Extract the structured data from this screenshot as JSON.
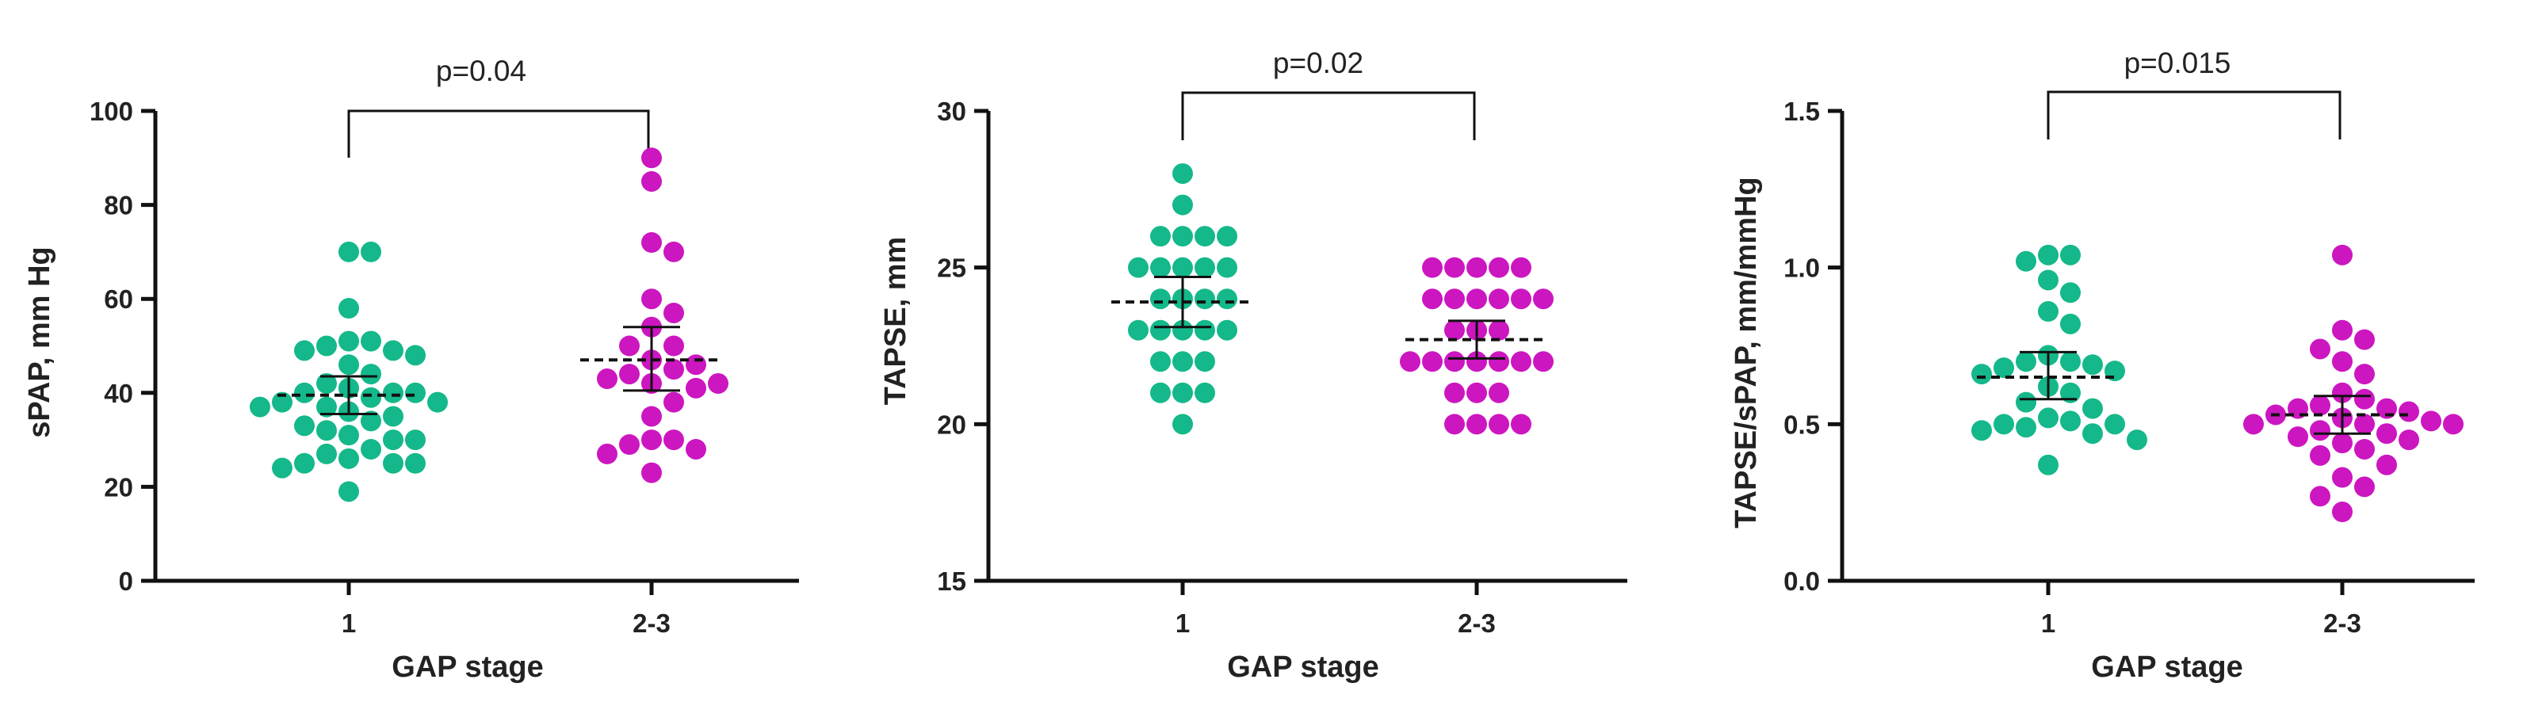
{
  "colors": {
    "group1": "#14b88a",
    "group2": "#cc16c0",
    "axis": "#111111",
    "text": "#222222"
  },
  "chart_data": [
    {
      "type": "scatter",
      "ylabel": "sPAP, mm Hg",
      "xlabel": "GAP stage",
      "categories": [
        "1",
        "2-3"
      ],
      "ylim": [
        0,
        100
      ],
      "yticks": [
        0,
        20,
        40,
        60,
        80,
        100
      ],
      "ytick_labels": [
        "0",
        "20",
        "40",
        "60",
        "80",
        "100"
      ],
      "annotation": "p=0.04",
      "series": [
        {
          "category": "1",
          "mean": 39.5,
          "ci": [
            35.5,
            43.5
          ],
          "values": [
            70,
            70,
            58,
            51,
            51,
            50,
            49,
            49,
            48,
            46,
            44,
            42,
            41,
            40,
            40,
            40,
            39,
            38,
            38,
            37,
            37,
            36,
            35,
            34,
            33,
            32,
            31,
            30,
            30,
            28,
            27,
            26,
            25,
            25,
            25,
            24,
            19
          ]
        },
        {
          "category": "2-3",
          "mean": 47,
          "ci": [
            40.5,
            54
          ],
          "values": [
            90,
            85,
            72,
            70,
            60,
            57,
            54,
            50,
            50,
            47,
            46,
            45,
            44,
            43,
            42,
            42,
            41,
            38,
            35,
            30,
            30,
            29,
            28,
            27,
            23
          ]
        }
      ]
    },
    {
      "type": "scatter",
      "ylabel": "TAPSE, mm",
      "xlabel": "GAP stage",
      "categories": [
        "1",
        "2-3"
      ],
      "ylim": [
        15,
        30
      ],
      "yticks": [
        15,
        20,
        25,
        30
      ],
      "ytick_labels": [
        "15",
        "20",
        "25",
        "30"
      ],
      "annotation": "p=0.02",
      "series": [
        {
          "category": "1",
          "mean": 23.9,
          "ci": [
            23.1,
            24.7
          ],
          "values": [
            28,
            27,
            26,
            26,
            26,
            26,
            25,
            25,
            25,
            25,
            25,
            24,
            24,
            24,
            24,
            23,
            23,
            23,
            23,
            23,
            22,
            22,
            22,
            21,
            21,
            21,
            20
          ]
        },
        {
          "category": "2-3",
          "mean": 22.7,
          "ci": [
            22.1,
            23.3
          ],
          "values": [
            25,
            25,
            25,
            25,
            25,
            24,
            24,
            24,
            24,
            24,
            24,
            23,
            23,
            23,
            22,
            22,
            22,
            22,
            22,
            22,
            22,
            21,
            21,
            21,
            20,
            20,
            20,
            20
          ]
        }
      ]
    },
    {
      "type": "scatter",
      "ylabel": "TAPSE/sPAP, mm/mmHg",
      "xlabel": "GAP stage",
      "categories": [
        "1",
        "2-3"
      ],
      "ylim": [
        0,
        1.5
      ],
      "yticks": [
        0,
        0.5,
        1.0,
        1.5
      ],
      "ytick_labels": [
        "0.0",
        "0.5",
        "1.0",
        "1.5"
      ],
      "annotation": "p=0.015",
      "series": [
        {
          "category": "1",
          "mean": 0.65,
          "ci": [
            0.58,
            0.73
          ],
          "values": [
            1.04,
            1.04,
            1.02,
            0.96,
            0.92,
            0.86,
            0.82,
            0.72,
            0.7,
            0.7,
            0.69,
            0.68,
            0.67,
            0.66,
            0.62,
            0.6,
            0.57,
            0.55,
            0.52,
            0.51,
            0.5,
            0.5,
            0.49,
            0.48,
            0.47,
            0.45,
            0.37
          ]
        },
        {
          "category": "2-3",
          "mean": 0.53,
          "ci": [
            0.47,
            0.59
          ],
          "values": [
            1.04,
            0.8,
            0.77,
            0.74,
            0.7,
            0.66,
            0.6,
            0.58,
            0.56,
            0.55,
            0.55,
            0.54,
            0.53,
            0.52,
            0.51,
            0.5,
            0.5,
            0.5,
            0.48,
            0.47,
            0.46,
            0.45,
            0.44,
            0.42,
            0.4,
            0.37,
            0.33,
            0.3,
            0.27,
            0.22
          ]
        }
      ]
    }
  ]
}
